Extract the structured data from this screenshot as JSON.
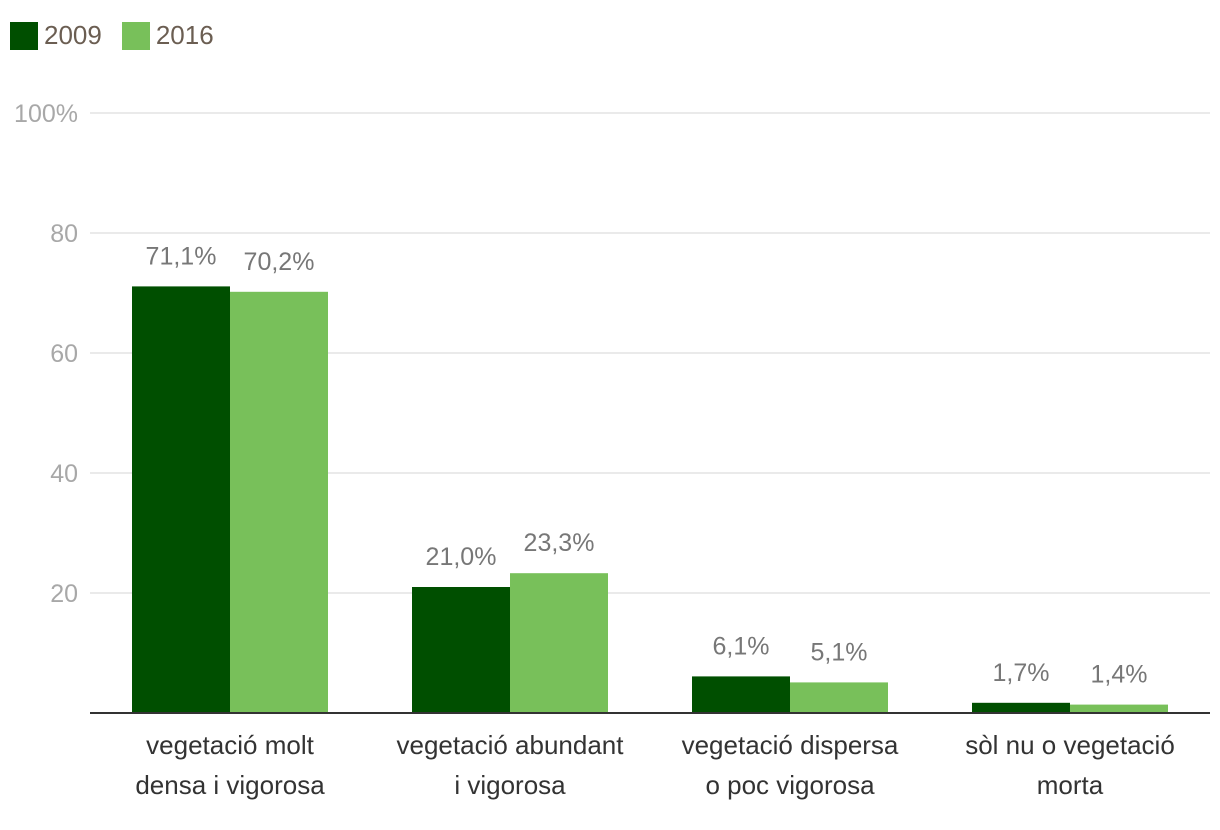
{
  "chart_data": {
    "type": "bar",
    "categories": [
      [
        "vegetació molt",
        "densa i vigorosa"
      ],
      [
        "vegetació abundant",
        "i vigorosa"
      ],
      [
        "vegetació dispersa",
        "o poc vigorosa"
      ],
      [
        "sòl nu o vegetació",
        "morta"
      ]
    ],
    "series": [
      {
        "name": "2009",
        "color": "#004f00",
        "values": [
          71.1,
          21.0,
          6.1,
          1.7
        ],
        "labels": [
          "71,1%",
          "21,0%",
          "6,1%",
          "1,7%"
        ]
      },
      {
        "name": "2016",
        "color": "#78c05a",
        "values": [
          70.2,
          23.3,
          5.1,
          1.4
        ],
        "labels": [
          "70,2%",
          "23,3%",
          "5,1%",
          "1,4%"
        ]
      }
    ],
    "y_ticks": [
      {
        "value": 20,
        "label": "20"
      },
      {
        "value": 40,
        "label": "40"
      },
      {
        "value": 60,
        "label": "60"
      },
      {
        "value": 80,
        "label": "80"
      },
      {
        "value": 100,
        "label": "100%"
      }
    ],
    "ylim": [
      0,
      100
    ],
    "grid": true,
    "legend_position": "top-left",
    "colors": {
      "grid": "#e4e4e4",
      "axis": "#333333",
      "tick_label": "#a8a8a8",
      "data_label": "#777777",
      "category_label": "#333333",
      "legend_text": "#6b5e52"
    }
  }
}
